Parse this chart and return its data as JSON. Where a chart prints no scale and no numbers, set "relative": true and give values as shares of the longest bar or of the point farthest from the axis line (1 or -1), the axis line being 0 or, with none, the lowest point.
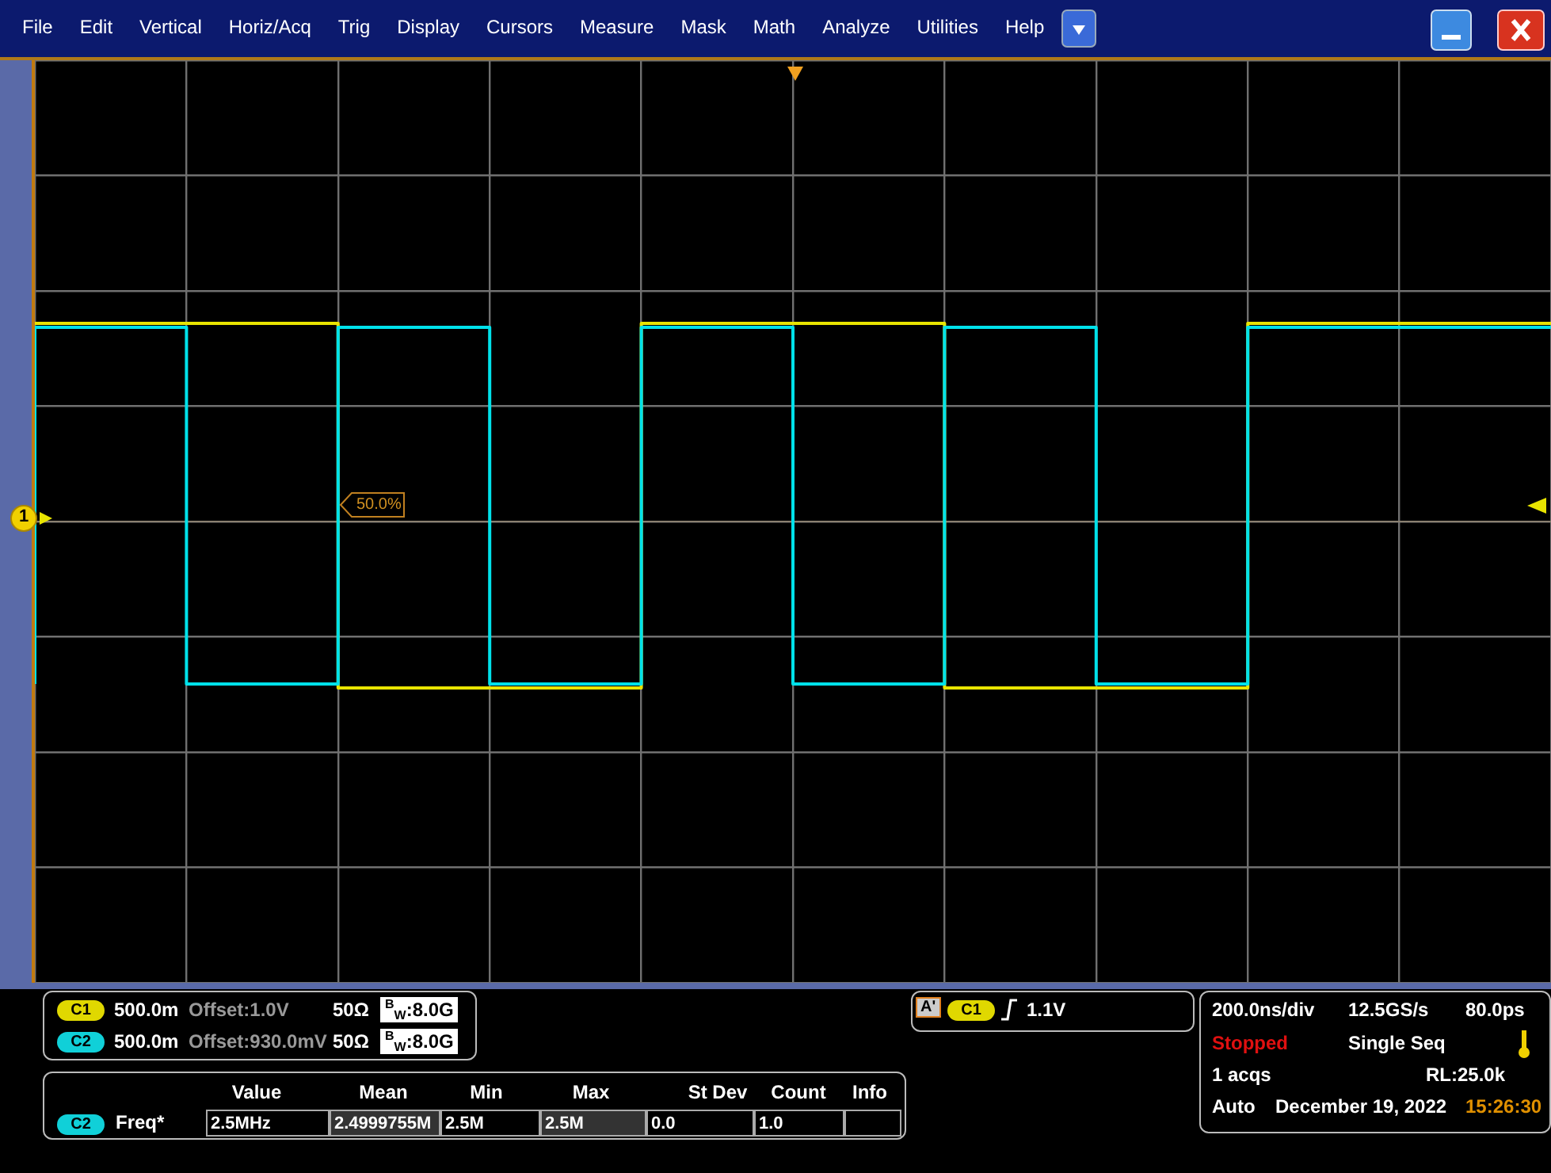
{
  "chart_data": {
    "type": "step",
    "relative": true,
    "marker": "none",
    "grid": true,
    "categories": [
      null,
      null,
      null,
      null,
      null,
      null,
      null,
      null,
      null,
      null,
      null
    ],
    "series": [
      {
        "color": "#e8e400",
        "values": [
          1,
          1,
          1,
          -0.84,
          -0.84,
          1,
          1,
          -0.84,
          -0.84,
          1,
          1
        ]
      },
      {
        "color": "#00e1ea",
        "values": [
          -0.82,
          0.98,
          -0.82,
          0.98,
          -0.82,
          0.98,
          -0.82,
          0.98,
          -0.82,
          0.98,
          0.98
        ]
      }
    ],
    "annotations": [
      "File",
      "Edit",
      "Vertical",
      "Horiz/Acq",
      "Trig",
      "Display",
      "Cursors",
      "Measure",
      "Mask",
      "Math",
      "Analyze",
      "Utilities",
      "Help",
      "1",
      "50.0%",
      "C1",
      "500.0m",
      "Offset:1.0V",
      "50Ω",
      "$^{B}$$_{W}$:8.0G",
      "C2",
      "500.0m",
      "Offset:930.0mV",
      "50Ω",
      "$^{B}$$_{W}$:8.0G",
      "A'",
      "C1",
      "1.1V",
      "200.0ns/div",
      "12.5GS/s",
      "80.0ps",
      "Stopped",
      "Single Seq",
      "1 acqs",
      "RL:25.0k",
      "Auto",
      "December 19, 2022",
      "15:26:30",
      "Value",
      "Mean",
      "Min",
      "Max",
      "St Dev",
      "Count",
      "Info",
      "C2",
      "Freq*",
      "2.5MHz",
      "2.4999755M",
      "2.5M",
      "2.5M",
      "0.0",
      "1.0"
    ]
  }
}
